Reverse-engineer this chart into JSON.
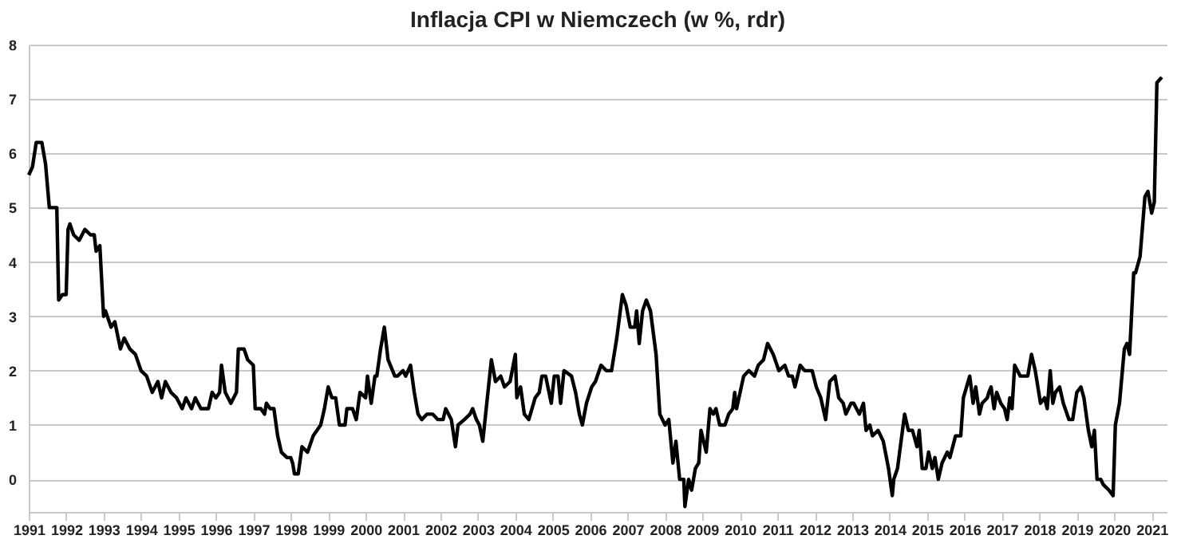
{
  "chart_data": {
    "type": "line",
    "title": "Inflacja CPI w Niemczech (w %, rdr)",
    "x": [
      1991.0,
      1991.1,
      1991.2,
      1991.35,
      1991.45,
      1991.55,
      1991.75,
      1991.8,
      1991.9,
      1992.0,
      1992.05,
      1992.1,
      1992.2,
      1992.35,
      1992.5,
      1992.65,
      1992.75,
      1992.8,
      1992.9,
      1993.0,
      1993.05,
      1993.2,
      1993.3,
      1993.45,
      1993.55,
      1993.7,
      1993.85,
      1994.0,
      1994.15,
      1994.3,
      1994.45,
      1994.55,
      1994.65,
      1994.8,
      1994.95,
      1995.1,
      1995.2,
      1995.35,
      1995.45,
      1995.6,
      1995.8,
      1995.9,
      1996.0,
      1996.1,
      1996.15,
      1996.25,
      1996.4,
      1996.55,
      1996.6,
      1996.75,
      1996.85,
      1997.0,
      1997.05,
      1997.2,
      1997.3,
      1997.35,
      1997.45,
      1997.55,
      1997.65,
      1997.75,
      1997.9,
      1998.0,
      1998.05,
      1998.1,
      1998.2,
      1998.3,
      1998.45,
      1998.6,
      1998.8,
      1998.9,
      1999.0,
      1999.1,
      1999.2,
      1999.3,
      1999.45,
      1999.5,
      1999.65,
      1999.75,
      1999.85,
      2000.0,
      2000.05,
      2000.15,
      2000.25,
      2000.3,
      2000.4,
      2000.5,
      2000.6,
      2000.78,
      2000.85,
      2001.0,
      2001.07,
      2001.2,
      2001.3,
      2001.4,
      2001.5,
      2001.64,
      2001.79,
      2001.93,
      2002.07,
      2002.14,
      2002.29,
      2002.4,
      2002.47,
      2002.64,
      2002.79,
      2002.86,
      2002.96,
      2003.04,
      2003.13,
      2003.36,
      2003.47,
      2003.61,
      2003.71,
      2003.86,
      2004.0,
      2004.04,
      2004.14,
      2004.24,
      2004.36,
      2004.53,
      2004.64,
      2004.71,
      2004.81,
      2004.96,
      2005.04,
      2005.14,
      2005.21,
      2005.3,
      2005.5,
      2005.61,
      2005.71,
      2005.79,
      2005.9,
      2006.04,
      2006.14,
      2006.29,
      2006.43,
      2006.57,
      2006.71,
      2006.86,
      2006.96,
      2007.07,
      2007.19,
      2007.24,
      2007.31,
      2007.4,
      2007.5,
      2007.61,
      2007.76,
      2007.86,
      2008.0,
      2008.1,
      2008.21,
      2008.29,
      2008.39,
      2008.5,
      2008.53,
      2008.63,
      2008.71,
      2008.81,
      2008.9,
      2008.96,
      2009.1,
      2009.2,
      2009.29,
      2009.36,
      2009.46,
      2009.6,
      2009.7,
      2009.81,
      2009.86,
      2009.91,
      2010.1,
      2010.24,
      2010.39,
      2010.49,
      2010.63,
      2010.74,
      2010.89,
      2011.04,
      2011.2,
      2011.3,
      2011.4,
      2011.47,
      2011.61,
      2011.73,
      2011.93,
      2012.04,
      2012.16,
      2012.29,
      2012.4,
      2012.54,
      2012.64,
      2012.76,
      2012.83,
      2012.97,
      2013.04,
      2013.19,
      2013.3,
      2013.37,
      2013.47,
      2013.54,
      2013.69,
      2013.83,
      2013.97,
      2014.07,
      2014.11,
      2014.21,
      2014.4,
      2014.5,
      2014.61,
      2014.73,
      2014.79,
      2014.87,
      2014.97,
      2015.04,
      2015.14,
      2015.21,
      2015.3,
      2015.4,
      2015.54,
      2015.61,
      2015.76,
      2015.9,
      2015.97,
      2016.14,
      2016.23,
      2016.3,
      2016.4,
      2016.47,
      2016.61,
      2016.65,
      2016.71,
      2016.79,
      2016.86,
      2016.97,
      2017.07,
      2017.14,
      2017.21,
      2017.27,
      2017.34,
      2017.49,
      2017.69,
      2017.79,
      2017.89,
      2018.03,
      2018.14,
      2018.21,
      2018.29,
      2018.36,
      2018.43,
      2018.54,
      2018.64,
      2018.79,
      2018.89,
      2019.0,
      2019.11,
      2019.19,
      2019.31,
      2019.4,
      2019.47,
      2019.54,
      2019.64,
      2019.71,
      2019.86,
      2019.97,
      2020.03,
      2020.14,
      2020.27,
      2020.34,
      2020.41,
      2020.52,
      2020.57,
      2020.69,
      2020.82,
      2020.9,
      2021.0,
      2021.07,
      2021.14,
      2021.27
    ],
    "values": [
      5.6,
      5.75,
      6.2,
      6.2,
      5.8,
      5.0,
      5.0,
      3.3,
      3.4,
      3.4,
      4.6,
      4.7,
      4.5,
      4.4,
      4.6,
      4.5,
      4.5,
      4.2,
      4.3,
      3.0,
      3.1,
      2.8,
      2.9,
      2.4,
      2.6,
      2.4,
      2.3,
      2.0,
      1.9,
      1.6,
      1.8,
      1.5,
      1.8,
      1.6,
      1.5,
      1.3,
      1.5,
      1.3,
      1.5,
      1.3,
      1.3,
      1.6,
      1.5,
      1.6,
      2.1,
      1.6,
      1.4,
      1.6,
      2.4,
      2.4,
      2.2,
      2.1,
      1.3,
      1.3,
      1.2,
      1.4,
      1.3,
      1.3,
      0.8,
      0.5,
      0.4,
      0.4,
      0.3,
      0.1,
      0.1,
      0.6,
      0.5,
      0.8,
      1.0,
      1.3,
      1.7,
      1.5,
      1.5,
      1.0,
      1.0,
      1.3,
      1.3,
      1.1,
      1.6,
      1.5,
      1.9,
      1.4,
      1.9,
      1.9,
      2.4,
      2.8,
      2.2,
      1.9,
      1.9,
      2.0,
      1.9,
      2.1,
      1.6,
      1.2,
      1.1,
      1.2,
      1.2,
      1.1,
      1.1,
      1.3,
      1.1,
      0.6,
      1.0,
      1.1,
      1.2,
      1.3,
      1.1,
      1.0,
      0.7,
      2.2,
      1.8,
      1.9,
      1.7,
      1.8,
      2.3,
      1.5,
      1.7,
      1.2,
      1.1,
      1.5,
      1.6,
      1.9,
      1.9,
      1.4,
      1.9,
      1.9,
      1.4,
      2.0,
      1.9,
      1.6,
      1.2,
      1.0,
      1.4,
      1.7,
      1.8,
      2.1,
      2.0,
      2.0,
      2.6,
      3.4,
      3.2,
      2.8,
      2.8,
      3.1,
      2.5,
      3.1,
      3.3,
      3.1,
      2.3,
      1.2,
      1.0,
      1.1,
      0.3,
      0.7,
      0.0,
      0.0,
      -0.5,
      0.0,
      -0.2,
      0.2,
      0.3,
      0.9,
      0.5,
      1.3,
      1.2,
      1.3,
      1.0,
      1.0,
      1.2,
      1.3,
      1.6,
      1.3,
      1.9,
      2.0,
      1.9,
      2.1,
      2.2,
      2.5,
      2.3,
      2.0,
      2.1,
      1.9,
      1.9,
      1.7,
      2.1,
      2.0,
      2.0,
      1.7,
      1.5,
      1.1,
      1.8,
      1.9,
      1.5,
      1.4,
      1.2,
      1.4,
      1.4,
      1.2,
      1.4,
      0.9,
      1.0,
      0.8,
      0.9,
      0.7,
      0.2,
      -0.3,
      0.0,
      0.2,
      1.2,
      0.9,
      0.9,
      0.6,
      0.9,
      0.2,
      0.2,
      0.5,
      0.2,
      0.4,
      0.0,
      0.3,
      0.5,
      0.4,
      0.8,
      0.8,
      1.5,
      1.9,
      1.4,
      1.7,
      1.2,
      1.4,
      1.5,
      1.6,
      1.7,
      1.3,
      1.6,
      1.4,
      1.3,
      1.1,
      1.5,
      1.3,
      2.1,
      1.9,
      1.9,
      2.3,
      2.0,
      1.4,
      1.5,
      1.3,
      2.0,
      1.4,
      1.6,
      1.7,
      1.4,
      1.1,
      1.1,
      1.6,
      1.7,
      1.5,
      0.9,
      0.6,
      0.9,
      0.0,
      0.0,
      -0.1,
      -0.2,
      -0.3,
      1.0,
      1.4,
      2.4,
      2.5,
      2.3,
      3.8,
      3.8,
      4.1,
      5.2,
      5.3,
      4.9,
      5.1,
      7.3,
      7.4
    ],
    "color": "#000000",
    "xlim": [
      1991,
      2021.4
    ],
    "xticks": [
      1991,
      1992,
      1993,
      1994,
      1995,
      1996,
      1997,
      1998,
      1999,
      2000,
      2001,
      2002,
      2003,
      2004,
      2005,
      2006,
      2007,
      2008,
      2009,
      2010,
      2011,
      2012,
      2013,
      2014,
      2015,
      2016,
      2017,
      2018,
      2019,
      2020,
      2021
    ],
    "ylim": [
      -0.6,
      8
    ],
    "yticks": [
      0,
      1,
      2,
      3,
      4,
      5,
      6,
      7,
      8
    ],
    "grid": "y",
    "marker": "none",
    "line_style": "solid"
  }
}
